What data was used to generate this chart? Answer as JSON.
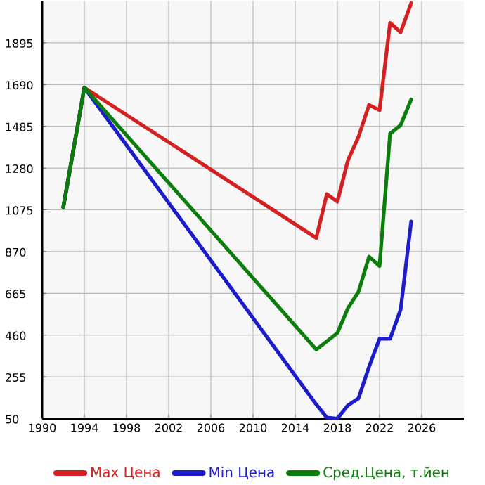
{
  "chart_data": {
    "type": "line",
    "x": [
      1992,
      1994,
      2016,
      2017,
      2018,
      2019,
      2020,
      2021,
      2022,
      2023,
      2024,
      2025
    ],
    "series": [
      {
        "name": "Max Цена",
        "color": "#d42020",
        "values": [
          1087,
          1675,
          937,
          1152,
          1115,
          1318,
          1433,
          1590,
          1564,
          1993,
          1947,
          2090
        ]
      },
      {
        "name": "Min Цена",
        "color": "#1c1ccc",
        "values": [
          1087,
          1675,
          119,
          55,
          50,
          115,
          149,
          304,
          442,
          442,
          585,
          1018
        ]
      },
      {
        "name": "Сред.Цена, т.йен",
        "color": "#0a7d0a",
        "values": [
          1087,
          1675,
          389,
          null,
          470,
          592,
          672,
          845,
          799,
          1449,
          1491,
          1617
        ]
      }
    ],
    "xlim": [
      1990,
      2030
    ],
    "ylim": [
      50,
      2100
    ],
    "xticks": [
      1990,
      1994,
      1998,
      2002,
      2006,
      2010,
      2014,
      2018,
      2022,
      2026
    ],
    "yticks": [
      50,
      255,
      460,
      665,
      870,
      1075,
      1280,
      1485,
      1690,
      1895
    ],
    "grid": true,
    "legend": "bottom",
    "marker": "none",
    "line_style": "solid"
  }
}
